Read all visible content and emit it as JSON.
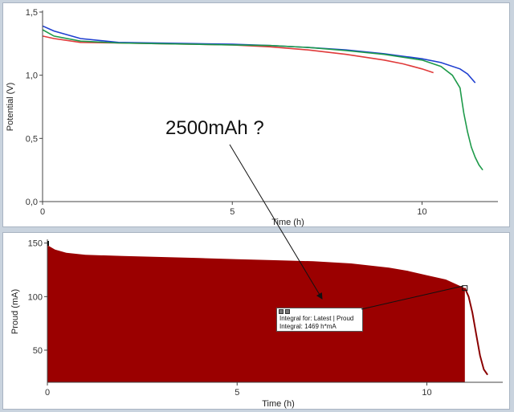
{
  "charts": {
    "top": {
      "ylabel": "Potential (V)",
      "xlabel": "Time (h)",
      "yticks": [
        "0,0",
        "0,5",
        "1,0",
        "1,5"
      ],
      "xticks": [
        "0",
        "5",
        "10"
      ],
      "annotation": "2500mAh ?"
    },
    "bottom": {
      "ylabel": "Proud (mA)",
      "xlabel": "Time (h)",
      "yticks": [
        "50",
        "100",
        "150"
      ],
      "xticks": [
        "0",
        "5",
        "10"
      ],
      "tooltip": {
        "line1": "Integral for: Latest | Proud",
        "line2": "Integral: 1469 h*mA"
      }
    }
  },
  "colors": {
    "red": "#e03a3a",
    "blue": "#1f3fd0",
    "green": "#1e9a4a",
    "fill": "#9b0000",
    "line": "#8a0000"
  },
  "chart_data": [
    {
      "type": "line",
      "xlabel": "Time (h)",
      "ylabel": "Potential (V)",
      "xlim": [
        0,
        12
      ],
      "ylim": [
        0,
        1.5
      ],
      "grid": false,
      "series": [
        {
          "color": "red",
          "x": [
            0,
            0.3,
            1,
            2,
            3,
            4,
            5,
            6,
            7,
            8,
            9,
            9.5,
            10,
            10.3
          ],
          "y": [
            1.31,
            1.29,
            1.26,
            1.255,
            1.25,
            1.245,
            1.24,
            1.225,
            1.2,
            1.165,
            1.12,
            1.09,
            1.05,
            1.02
          ]
        },
        {
          "color": "blue",
          "x": [
            0,
            0.3,
            1,
            2,
            3,
            4,
            5,
            6,
            7,
            8,
            9,
            10,
            10.5,
            11,
            11.2,
            11.4
          ],
          "y": [
            1.39,
            1.35,
            1.29,
            1.26,
            1.255,
            1.25,
            1.245,
            1.235,
            1.22,
            1.2,
            1.17,
            1.13,
            1.1,
            1.05,
            1.01,
            0.94
          ]
        },
        {
          "color": "green",
          "x": [
            0,
            0.3,
            1,
            2,
            3,
            4,
            5,
            6,
            7,
            8,
            9,
            10,
            10.5,
            10.8,
            11,
            11.05,
            11.1,
            11.2,
            11.3,
            11.4,
            11.5,
            11.6
          ],
          "y": [
            1.36,
            1.31,
            1.27,
            1.255,
            1.25,
            1.245,
            1.24,
            1.235,
            1.22,
            1.195,
            1.165,
            1.12,
            1.07,
            1.0,
            0.9,
            0.8,
            0.7,
            0.55,
            0.43,
            0.35,
            0.29,
            0.25
          ]
        }
      ]
    },
    {
      "type": "area",
      "xlabel": "Time (h)",
      "ylabel": "Proud (mA)",
      "xlim": [
        0,
        12
      ],
      "ylim": [
        20,
        152
      ],
      "grid": false,
      "series": [
        {
          "color": "fill",
          "x": [
            0,
            0.2,
            0.5,
            1,
            2,
            3,
            4,
            5,
            6,
            7,
            8,
            9,
            9.5,
            10,
            10.5,
            11
          ],
          "y": [
            148,
            144,
            141,
            139,
            138,
            137,
            136,
            135,
            134,
            133,
            131,
            127,
            124,
            120,
            116,
            108
          ]
        },
        {
          "color": "line",
          "x": [
            11,
            11.1,
            11.2,
            11.3,
            11.4,
            11.5,
            11.6
          ],
          "y": [
            108,
            100,
            85,
            65,
            45,
            32,
            27
          ]
        }
      ],
      "annotations": [
        "Integral for: Latest | Proud",
        "Integral: 1469 h*mA"
      ]
    }
  ]
}
